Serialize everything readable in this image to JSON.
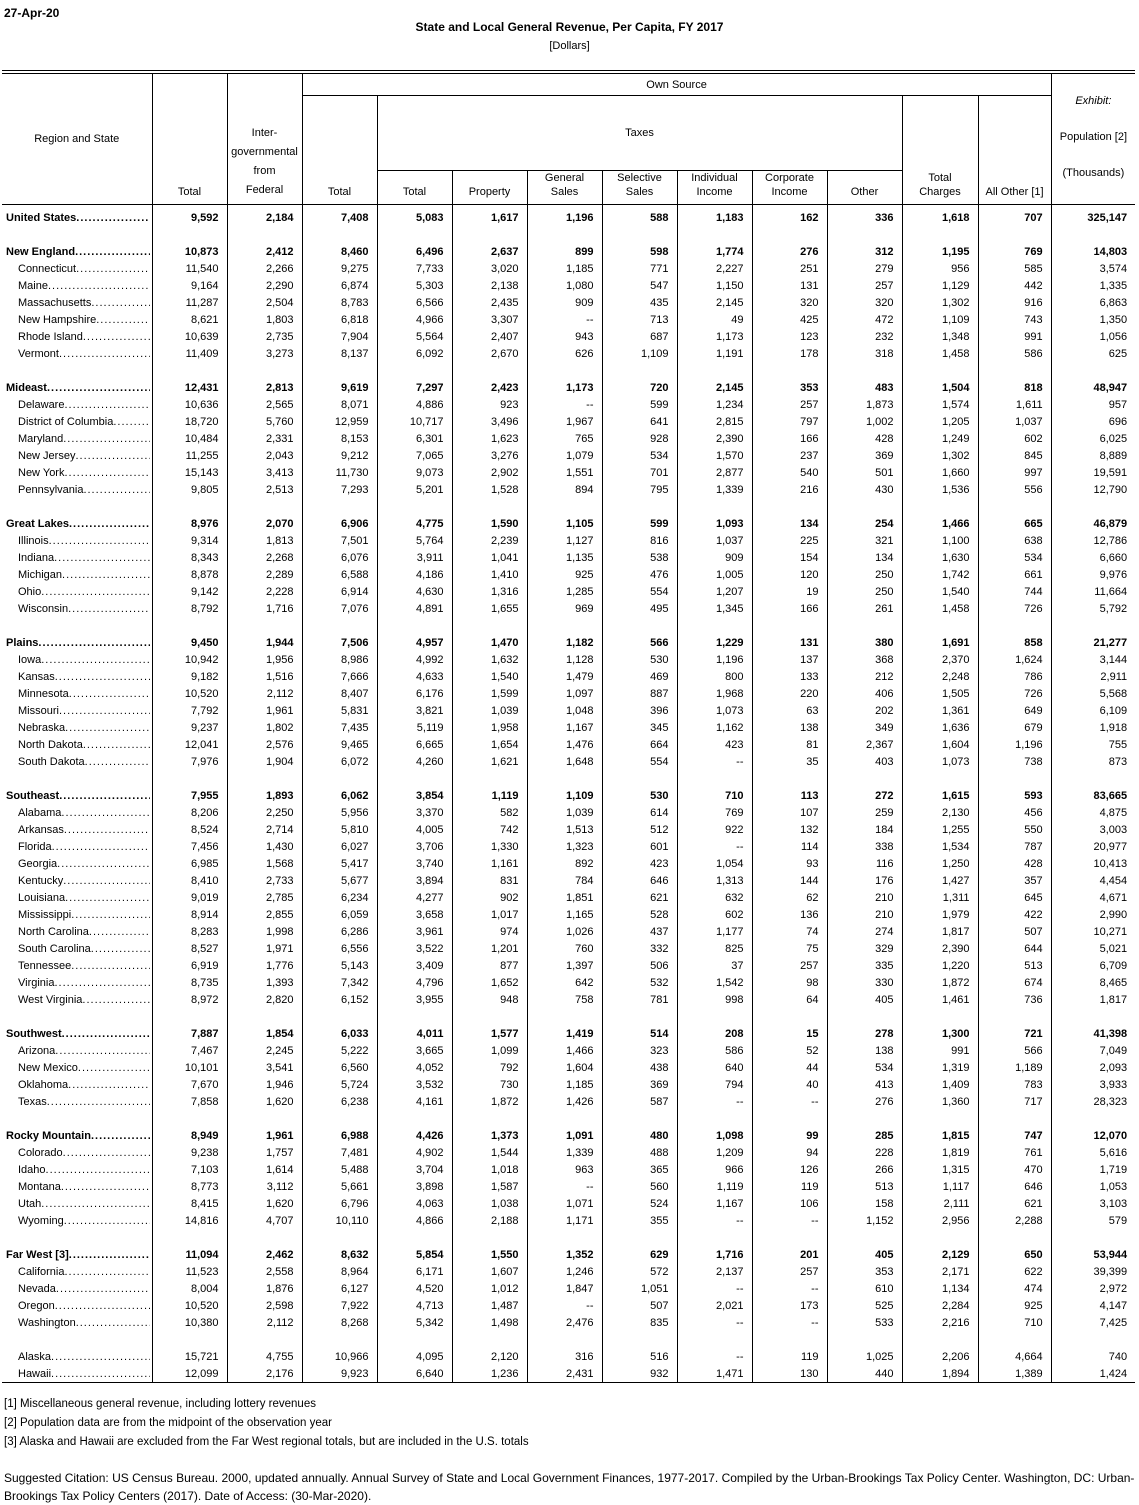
{
  "meta": {
    "date": "27-Apr-20",
    "title": "State and Local General Revenue, Per Capita, FY 2017",
    "subtitle": "[Dollars]"
  },
  "header": {
    "region_state": "Region and State",
    "total": "Total",
    "intergovernmental": "Inter-\ngovernmental\nfrom\nFederal",
    "own_source": "Own Source",
    "own_source_total": "Total",
    "taxes": "Taxes",
    "tax_columns": [
      "Total",
      "Property",
      "General\nSales",
      "Selective\nSales",
      "Individual\nIncome",
      "Corporate\nIncome",
      "Other"
    ],
    "total_charges": "Total\nCharges",
    "all_other": "All Other [1]",
    "exhibit_label": "Exhibit:",
    "exhibit_population": "Population [2]",
    "exhibit_thousands": "(Thousands)"
  },
  "rows": [
    {
      "type": "us",
      "label": "United States ",
      "values": [
        "9,592",
        "2,184",
        "7,408",
        "5,083",
        "1,617",
        "1,196",
        "588",
        "1,183",
        "162",
        "336",
        "1,618",
        "707",
        "325,147"
      ]
    },
    {
      "type": "gap"
    },
    {
      "type": "region",
      "label": "New England",
      "values": [
        "10,873",
        "2,412",
        "8,460",
        "6,496",
        "2,637",
        "899",
        "598",
        "1,774",
        "276",
        "312",
        "1,195",
        "769",
        "14,803"
      ]
    },
    {
      "type": "state",
      "label": "Connecticut",
      "values": [
        "11,540",
        "2,266",
        "9,275",
        "7,733",
        "3,020",
        "1,185",
        "771",
        "2,227",
        "251",
        "279",
        "956",
        "585",
        "3,574"
      ]
    },
    {
      "type": "state",
      "label": "Maine",
      "values": [
        "9,164",
        "2,290",
        "6,874",
        "5,303",
        "2,138",
        "1,080",
        "547",
        "1,150",
        "131",
        "257",
        "1,129",
        "442",
        "1,335"
      ]
    },
    {
      "type": "state",
      "label": "Massachusetts",
      "values": [
        "11,287",
        "2,504",
        "8,783",
        "6,566",
        "2,435",
        "909",
        "435",
        "2,145",
        "320",
        "320",
        "1,302",
        "916",
        "6,863"
      ]
    },
    {
      "type": "state",
      "label": "New Hampshire",
      "values": [
        "8,621",
        "1,803",
        "6,818",
        "4,966",
        "3,307",
        "--",
        "713",
        "49",
        "425",
        "472",
        "1,109",
        "743",
        "1,350"
      ]
    },
    {
      "type": "state",
      "label": "Rhode Island",
      "values": [
        "10,639",
        "2,735",
        "7,904",
        "5,564",
        "2,407",
        "943",
        "687",
        "1,173",
        "123",
        "232",
        "1,348",
        "991",
        "1,056"
      ]
    },
    {
      "type": "state",
      "label": "Vermont",
      "values": [
        "11,409",
        "3,273",
        "8,137",
        "6,092",
        "2,670",
        "626",
        "1,109",
        "1,191",
        "178",
        "318",
        "1,458",
        "586",
        "625"
      ]
    },
    {
      "type": "gap"
    },
    {
      "type": "region",
      "label": "Mideast",
      "values": [
        "12,431",
        "2,813",
        "9,619",
        "7,297",
        "2,423",
        "1,173",
        "720",
        "2,145",
        "353",
        "483",
        "1,504",
        "818",
        "48,947"
      ]
    },
    {
      "type": "state",
      "label": "Delaware",
      "values": [
        "10,636",
        "2,565",
        "8,071",
        "4,886",
        "923",
        "--",
        "599",
        "1,234",
        "257",
        "1,873",
        "1,574",
        "1,611",
        "957"
      ]
    },
    {
      "type": "state",
      "label": "District of Columbia",
      "values": [
        "18,720",
        "5,760",
        "12,959",
        "10,717",
        "3,496",
        "1,967",
        "641",
        "2,815",
        "797",
        "1,002",
        "1,205",
        "1,037",
        "696"
      ]
    },
    {
      "type": "state",
      "label": "Maryland",
      "values": [
        "10,484",
        "2,331",
        "8,153",
        "6,301",
        "1,623",
        "765",
        "928",
        "2,390",
        "166",
        "428",
        "1,249",
        "602",
        "6,025"
      ]
    },
    {
      "type": "state",
      "label": "New Jersey",
      "values": [
        "11,255",
        "2,043",
        "9,212",
        "7,065",
        "3,276",
        "1,079",
        "534",
        "1,570",
        "237",
        "369",
        "1,302",
        "845",
        "8,889"
      ]
    },
    {
      "type": "state",
      "label": "New York",
      "values": [
        "15,143",
        "3,413",
        "11,730",
        "9,073",
        "2,902",
        "1,551",
        "701",
        "2,877",
        "540",
        "501",
        "1,660",
        "997",
        "19,591"
      ]
    },
    {
      "type": "state",
      "label": "Pennsylvania",
      "values": [
        "9,805",
        "2,513",
        "7,293",
        "5,201",
        "1,528",
        "894",
        "795",
        "1,339",
        "216",
        "430",
        "1,536",
        "556",
        "12,790"
      ]
    },
    {
      "type": "gap"
    },
    {
      "type": "region",
      "label": "Great Lakes",
      "values": [
        "8,976",
        "2,070",
        "6,906",
        "4,775",
        "1,590",
        "1,105",
        "599",
        "1,093",
        "134",
        "254",
        "1,466",
        "665",
        "46,879"
      ]
    },
    {
      "type": "state",
      "label": "Illinois",
      "values": [
        "9,314",
        "1,813",
        "7,501",
        "5,764",
        "2,239",
        "1,127",
        "816",
        "1,037",
        "225",
        "321",
        "1,100",
        "638",
        "12,786"
      ]
    },
    {
      "type": "state",
      "label": "Indiana",
      "values": [
        "8,343",
        "2,268",
        "6,076",
        "3,911",
        "1,041",
        "1,135",
        "538",
        "909",
        "154",
        "134",
        "1,630",
        "534",
        "6,660"
      ]
    },
    {
      "type": "state",
      "label": "Michigan",
      "values": [
        "8,878",
        "2,289",
        "6,588",
        "4,186",
        "1,410",
        "925",
        "476",
        "1,005",
        "120",
        "250",
        "1,742",
        "661",
        "9,976"
      ]
    },
    {
      "type": "state",
      "label": "Ohio",
      "values": [
        "9,142",
        "2,228",
        "6,914",
        "4,630",
        "1,316",
        "1,285",
        "554",
        "1,207",
        "19",
        "250",
        "1,540",
        "744",
        "11,664"
      ]
    },
    {
      "type": "state",
      "label": "Wisconsin",
      "values": [
        "8,792",
        "1,716",
        "7,076",
        "4,891",
        "1,655",
        "969",
        "495",
        "1,345",
        "166",
        "261",
        "1,458",
        "726",
        "5,792"
      ]
    },
    {
      "type": "gap"
    },
    {
      "type": "region",
      "label": "Plains",
      "values": [
        "9,450",
        "1,944",
        "7,506",
        "4,957",
        "1,470",
        "1,182",
        "566",
        "1,229",
        "131",
        "380",
        "1,691",
        "858",
        "21,277"
      ]
    },
    {
      "type": "state",
      "label": "Iowa",
      "values": [
        "10,942",
        "1,956",
        "8,986",
        "4,992",
        "1,632",
        "1,128",
        "530",
        "1,196",
        "137",
        "368",
        "2,370",
        "1,624",
        "3,144"
      ]
    },
    {
      "type": "state",
      "label": "Kansas",
      "values": [
        "9,182",
        "1,516",
        "7,666",
        "4,633",
        "1,540",
        "1,479",
        "469",
        "800",
        "133",
        "212",
        "2,248",
        "786",
        "2,911"
      ]
    },
    {
      "type": "state",
      "label": "Minnesota",
      "values": [
        "10,520",
        "2,112",
        "8,407",
        "6,176",
        "1,599",
        "1,097",
        "887",
        "1,968",
        "220",
        "406",
        "1,505",
        "726",
        "5,568"
      ]
    },
    {
      "type": "state",
      "label": "Missouri",
      "values": [
        "7,792",
        "1,961",
        "5,831",
        "3,821",
        "1,039",
        "1,048",
        "396",
        "1,073",
        "63",
        "202",
        "1,361",
        "649",
        "6,109"
      ]
    },
    {
      "type": "state",
      "label": "Nebraska",
      "values": [
        "9,237",
        "1,802",
        "7,435",
        "5,119",
        "1,958",
        "1,167",
        "345",
        "1,162",
        "138",
        "349",
        "1,636",
        "679",
        "1,918"
      ]
    },
    {
      "type": "state",
      "label": "North Dakota",
      "values": [
        "12,041",
        "2,576",
        "9,465",
        "6,665",
        "1,654",
        "1,476",
        "664",
        "423",
        "81",
        "2,367",
        "1,604",
        "1,196",
        "755"
      ]
    },
    {
      "type": "state",
      "label": "South Dakota",
      "values": [
        "7,976",
        "1,904",
        "6,072",
        "4,260",
        "1,621",
        "1,648",
        "554",
        "--",
        "35",
        "403",
        "1,073",
        "738",
        "873"
      ]
    },
    {
      "type": "gap"
    },
    {
      "type": "region",
      "label": "Southeast",
      "values": [
        "7,955",
        "1,893",
        "6,062",
        "3,854",
        "1,119",
        "1,109",
        "530",
        "710",
        "113",
        "272",
        "1,615",
        "593",
        "83,665"
      ]
    },
    {
      "type": "state",
      "label": "Alabama",
      "values": [
        "8,206",
        "2,250",
        "5,956",
        "3,370",
        "582",
        "1,039",
        "614",
        "769",
        "107",
        "259",
        "2,130",
        "456",
        "4,875"
      ]
    },
    {
      "type": "state",
      "label": "Arkansas",
      "values": [
        "8,524",
        "2,714",
        "5,810",
        "4,005",
        "742",
        "1,513",
        "512",
        "922",
        "132",
        "184",
        "1,255",
        "550",
        "3,003"
      ]
    },
    {
      "type": "state",
      "label": "Florida",
      "values": [
        "7,456",
        "1,430",
        "6,027",
        "3,706",
        "1,330",
        "1,323",
        "601",
        "--",
        "114",
        "338",
        "1,534",
        "787",
        "20,977"
      ]
    },
    {
      "type": "state",
      "label": "Georgia",
      "values": [
        "6,985",
        "1,568",
        "5,417",
        "3,740",
        "1,161",
        "892",
        "423",
        "1,054",
        "93",
        "116",
        "1,250",
        "428",
        "10,413"
      ]
    },
    {
      "type": "state",
      "label": "Kentucky",
      "values": [
        "8,410",
        "2,733",
        "5,677",
        "3,894",
        "831",
        "784",
        "646",
        "1,313",
        "144",
        "176",
        "1,427",
        "357",
        "4,454"
      ]
    },
    {
      "type": "state",
      "label": "Louisiana",
      "values": [
        "9,019",
        "2,785",
        "6,234",
        "4,277",
        "902",
        "1,851",
        "621",
        "632",
        "62",
        "210",
        "1,311",
        "645",
        "4,671"
      ]
    },
    {
      "type": "state",
      "label": "Mississippi",
      "values": [
        "8,914",
        "2,855",
        "6,059",
        "3,658",
        "1,017",
        "1,165",
        "528",
        "602",
        "136",
        "210",
        "1,979",
        "422",
        "2,990"
      ]
    },
    {
      "type": "state",
      "label": "North Carolina",
      "values": [
        "8,283",
        "1,998",
        "6,286",
        "3,961",
        "974",
        "1,026",
        "437",
        "1,177",
        "74",
        "274",
        "1,817",
        "507",
        "10,271"
      ]
    },
    {
      "type": "state",
      "label": "South Carolina",
      "values": [
        "8,527",
        "1,971",
        "6,556",
        "3,522",
        "1,201",
        "760",
        "332",
        "825",
        "75",
        "329",
        "2,390",
        "644",
        "5,021"
      ]
    },
    {
      "type": "state",
      "label": "Tennessee",
      "values": [
        "6,919",
        "1,776",
        "5,143",
        "3,409",
        "877",
        "1,397",
        "506",
        "37",
        "257",
        "335",
        "1,220",
        "513",
        "6,709"
      ]
    },
    {
      "type": "state",
      "label": "Virginia",
      "values": [
        "8,735",
        "1,393",
        "7,342",
        "4,796",
        "1,652",
        "642",
        "532",
        "1,542",
        "98",
        "330",
        "1,872",
        "674",
        "8,465"
      ]
    },
    {
      "type": "state",
      "label": "West Virginia",
      "values": [
        "8,972",
        "2,820",
        "6,152",
        "3,955",
        "948",
        "758",
        "781",
        "998",
        "64",
        "405",
        "1,461",
        "736",
        "1,817"
      ]
    },
    {
      "type": "gap"
    },
    {
      "type": "region",
      "label": "Southwest",
      "values": [
        "7,887",
        "1,854",
        "6,033",
        "4,011",
        "1,577",
        "1,419",
        "514",
        "208",
        "15",
        "278",
        "1,300",
        "721",
        "41,398"
      ]
    },
    {
      "type": "state",
      "label": "Arizona",
      "values": [
        "7,467",
        "2,245",
        "5,222",
        "3,665",
        "1,099",
        "1,466",
        "323",
        "586",
        "52",
        "138",
        "991",
        "566",
        "7,049"
      ]
    },
    {
      "type": "state",
      "label": "New Mexico",
      "values": [
        "10,101",
        "3,541",
        "6,560",
        "4,052",
        "792",
        "1,604",
        "438",
        "640",
        "44",
        "534",
        "1,319",
        "1,189",
        "2,093"
      ]
    },
    {
      "type": "state",
      "label": "Oklahoma",
      "values": [
        "7,670",
        "1,946",
        "5,724",
        "3,532",
        "730",
        "1,185",
        "369",
        "794",
        "40",
        "413",
        "1,409",
        "783",
        "3,933"
      ]
    },
    {
      "type": "state",
      "label": "Texas",
      "values": [
        "7,858",
        "1,620",
        "6,238",
        "4,161",
        "1,872",
        "1,426",
        "587",
        "--",
        "--",
        "276",
        "1,360",
        "717",
        "28,323"
      ]
    },
    {
      "type": "gap"
    },
    {
      "type": "region",
      "label": "Rocky Mountain",
      "values": [
        "8,949",
        "1,961",
        "6,988",
        "4,426",
        "1,373",
        "1,091",
        "480",
        "1,098",
        "99",
        "285",
        "1,815",
        "747",
        "12,070"
      ]
    },
    {
      "type": "state",
      "label": "Colorado",
      "values": [
        "9,238",
        "1,757",
        "7,481",
        "4,902",
        "1,544",
        "1,339",
        "488",
        "1,209",
        "94",
        "228",
        "1,819",
        "761",
        "5,616"
      ]
    },
    {
      "type": "state",
      "label": "Idaho",
      "values": [
        "7,103",
        "1,614",
        "5,488",
        "3,704",
        "1,018",
        "963",
        "365",
        "966",
        "126",
        "266",
        "1,315",
        "470",
        "1,719"
      ]
    },
    {
      "type": "state",
      "label": "Montana",
      "values": [
        "8,773",
        "3,112",
        "5,661",
        "3,898",
        "1,587",
        "--",
        "560",
        "1,119",
        "119",
        "513",
        "1,117",
        "646",
        "1,053"
      ]
    },
    {
      "type": "state",
      "label": "Utah",
      "values": [
        "8,415",
        "1,620",
        "6,796",
        "4,063",
        "1,038",
        "1,071",
        "524",
        "1,167",
        "106",
        "158",
        "2,111",
        "621",
        "3,103"
      ]
    },
    {
      "type": "state",
      "label": "Wyoming",
      "values": [
        "14,816",
        "4,707",
        "10,110",
        "4,866",
        "2,188",
        "1,171",
        "355",
        "--",
        "--",
        "1,152",
        "2,956",
        "2,288",
        "579"
      ]
    },
    {
      "type": "gap"
    },
    {
      "type": "region",
      "label": "Far West [3]",
      "values": [
        "11,094",
        "2,462",
        "8,632",
        "5,854",
        "1,550",
        "1,352",
        "629",
        "1,716",
        "201",
        "405",
        "2,129",
        "650",
        "53,944"
      ]
    },
    {
      "type": "state",
      "label": "California",
      "values": [
        "11,523",
        "2,558",
        "8,964",
        "6,171",
        "1,607",
        "1,246",
        "572",
        "2,137",
        "257",
        "353",
        "2,171",
        "622",
        "39,399"
      ]
    },
    {
      "type": "state",
      "label": "Nevada",
      "values": [
        "8,004",
        "1,876",
        "6,127",
        "4,520",
        "1,012",
        "1,847",
        "1,051",
        "--",
        "--",
        "610",
        "1,134",
        "474",
        "2,972"
      ]
    },
    {
      "type": "state",
      "label": "Oregon",
      "values": [
        "10,520",
        "2,598",
        "7,922",
        "4,713",
        "1,487",
        "--",
        "507",
        "2,021",
        "173",
        "525",
        "2,284",
        "925",
        "4,147"
      ]
    },
    {
      "type": "state",
      "label": "Washington",
      "values": [
        "10,380",
        "2,112",
        "8,268",
        "5,342",
        "1,498",
        "2,476",
        "835",
        "--",
        "--",
        "533",
        "2,216",
        "710",
        "7,425"
      ]
    },
    {
      "type": "gap"
    },
    {
      "type": "state",
      "label": "Alaska",
      "values": [
        "15,721",
        "4,755",
        "10,966",
        "4,095",
        "2,120",
        "316",
        "516",
        "--",
        "119",
        "1,025",
        "2,206",
        "4,664",
        "740"
      ]
    },
    {
      "type": "state",
      "label": "Hawaii",
      "values": [
        "12,099",
        "2,176",
        "9,923",
        "6,640",
        "1,236",
        "2,431",
        "932",
        "1,471",
        "130",
        "440",
        "1,894",
        "1,389",
        "1,424"
      ]
    }
  ],
  "footnotes": [
    "[1] Miscellaneous general revenue, including lottery revenues",
    "[2] Population data are from the midpoint of the observation year",
    "[3] Alaska and Hawaii are excluded from the Far West regional totals, but are included in the U.S. totals"
  ],
  "citation": "Suggested Citation: US Census Bureau. 2000, updated annually. Annual Survey of State and Local Government Finances, 1977-2017. Compiled by the Urban-Brookings Tax Policy Center. Washington, DC: Urban-Brookings Tax Policy Centers (2017). Date of Access: (30-Mar-2020)."
}
